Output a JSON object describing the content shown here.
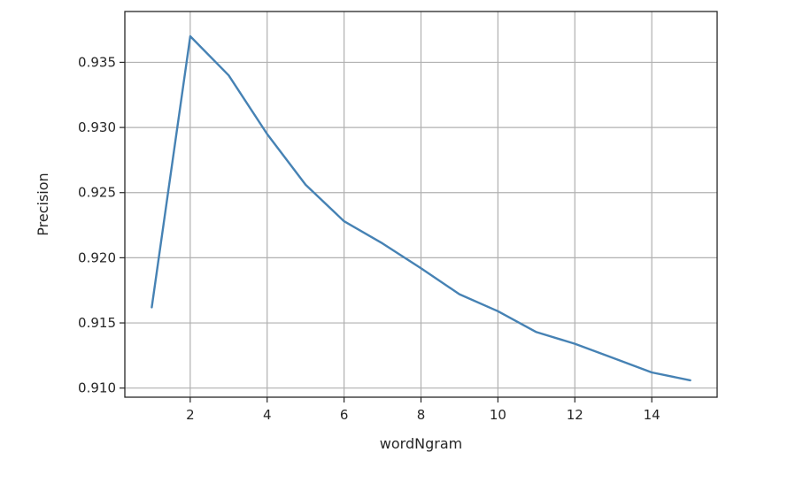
{
  "chart_data": {
    "type": "line",
    "xlabel": "wordNgram",
    "ylabel": "Precision",
    "xlim": [
      0.3,
      15.7
    ],
    "ylim": [
      0.9093,
      0.9389
    ],
    "xticks": [
      2,
      4,
      6,
      8,
      10,
      12,
      14
    ],
    "yticks": [
      0.91,
      0.915,
      0.92,
      0.925,
      0.93,
      0.935
    ],
    "xtick_labels": [
      "2",
      "4",
      "6",
      "8",
      "10",
      "12",
      "14"
    ],
    "ytick_labels": [
      "0.910",
      "0.915",
      "0.920",
      "0.925",
      "0.930",
      "0.935"
    ],
    "grid": true,
    "series": [
      {
        "color": "#4682b4",
        "x": [
          1,
          2,
          3,
          4,
          5,
          6,
          7,
          8,
          9,
          10,
          11,
          12,
          13,
          14,
          15
        ],
        "values": [
          0.9162,
          0.937,
          0.934,
          0.9295,
          0.9256,
          0.9228,
          0.9211,
          0.9192,
          0.9172,
          0.9159,
          0.9143,
          0.9134,
          0.9123,
          0.9112,
          0.9106
        ]
      }
    ]
  }
}
